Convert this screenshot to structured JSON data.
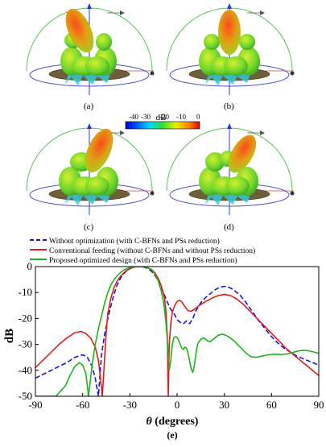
{
  "colorbar": {
    "unit": "dB",
    "tick_labels": [
      "-40",
      "-30",
      "-20",
      "-10",
      "0"
    ]
  },
  "panel_labels": [
    "(a)",
    "(b)",
    "(c)",
    "(d)",
    "(e)"
  ],
  "chart_data": {
    "type": "line",
    "xlabel_symbol": "θ",
    "xlabel_text": " (degrees)",
    "ylabel": "dB",
    "xlim": [
      -90,
      90
    ],
    "ylim": [
      -50,
      0
    ],
    "xticks": [
      -90,
      -60,
      -30,
      0,
      30,
      60,
      90
    ],
    "yticks": [
      0,
      -10,
      -20,
      -30,
      -40,
      -50
    ],
    "legend_placement": "top-left, above plot",
    "series": [
      {
        "name": "Without optimization (with C-BFNs and PSs reduction)",
        "color": "#1515d6",
        "style": "dashed",
        "points": [
          [
            -90,
            -43
          ],
          [
            -85,
            -41.5
          ],
          [
            -80,
            -40
          ],
          [
            -75,
            -38.5
          ],
          [
            -70,
            -37
          ],
          [
            -65,
            -35
          ],
          [
            -60,
            -34
          ],
          [
            -57,
            -35
          ],
          [
            -54,
            -38.5
          ],
          [
            -52,
            -43
          ],
          [
            -50,
            -50
          ],
          [
            -49,
            -42
          ],
          [
            -48,
            -34
          ],
          [
            -46,
            -26
          ],
          [
            -44,
            -20
          ],
          [
            -42,
            -15
          ],
          [
            -40,
            -10.5
          ],
          [
            -38,
            -7
          ],
          [
            -36,
            -4.5
          ],
          [
            -34,
            -2.8
          ],
          [
            -32,
            -1.6
          ],
          [
            -30,
            -0.8
          ],
          [
            -28,
            -0.3
          ],
          [
            -26,
            -0.05
          ],
          [
            -24,
            0
          ],
          [
            -22,
            -0.1
          ],
          [
            -20,
            -0.4
          ],
          [
            -18,
            -1
          ],
          [
            -16,
            -2
          ],
          [
            -14,
            -3.5
          ],
          [
            -12,
            -5.5
          ],
          [
            -10,
            -8
          ],
          [
            -8,
            -11
          ],
          [
            -6,
            -14
          ],
          [
            -4,
            -16.5
          ],
          [
            -2,
            -18
          ],
          [
            0,
            -20.5
          ],
          [
            2,
            -21.5
          ],
          [
            4,
            -22
          ],
          [
            6,
            -21
          ],
          [
            8,
            -22
          ],
          [
            10,
            -20
          ],
          [
            12,
            -17
          ],
          [
            15,
            -14
          ],
          [
            18,
            -12
          ],
          [
            21,
            -10.5
          ],
          [
            24,
            -9
          ],
          [
            27,
            -8
          ],
          [
            30,
            -7.6
          ],
          [
            33,
            -8
          ],
          [
            36,
            -9
          ],
          [
            40,
            -11
          ],
          [
            44,
            -14
          ],
          [
            48,
            -17.5
          ],
          [
            52,
            -21
          ],
          [
            56,
            -24
          ],
          [
            60,
            -27
          ],
          [
            64,
            -29.5
          ],
          [
            68,
            -31.5
          ],
          [
            72,
            -33
          ],
          [
            76,
            -34.5
          ],
          [
            80,
            -35.5
          ],
          [
            84,
            -36.5
          ],
          [
            88,
            -37.5
          ],
          [
            90,
            -38
          ]
        ]
      },
      {
        "name": "Conventional feeding (without C-BFNs and without PSs reduction)",
        "color": "#e01b1b",
        "style": "solid",
        "points": [
          [
            -90,
            -39
          ],
          [
            -85,
            -36
          ],
          [
            -80,
            -33
          ],
          [
            -75,
            -30
          ],
          [
            -70,
            -27.5
          ],
          [
            -65,
            -25.5
          ],
          [
            -61,
            -25
          ],
          [
            -58,
            -25.8
          ],
          [
            -55,
            -27.5
          ],
          [
            -52,
            -31
          ],
          [
            -50,
            -36
          ],
          [
            -48.5,
            -44
          ],
          [
            -47.5,
            -50
          ],
          [
            -46,
            -35
          ],
          [
            -45,
            -25
          ],
          [
            -44,
            -18
          ],
          [
            -42,
            -12
          ],
          [
            -40,
            -8
          ],
          [
            -38,
            -5.5
          ],
          [
            -36,
            -3.8
          ],
          [
            -34,
            -2.5
          ],
          [
            -32,
            -1.5
          ],
          [
            -30,
            -0.8
          ],
          [
            -28,
            -0.3
          ],
          [
            -26,
            -0.05
          ],
          [
            -24,
            0
          ],
          [
            -22,
            -0.05
          ],
          [
            -20,
            -0.2
          ],
          [
            -18,
            -0.6
          ],
          [
            -16,
            -1.2
          ],
          [
            -14,
            -2.5
          ],
          [
            -12,
            -4.5
          ],
          [
            -10,
            -7.5
          ],
          [
            -8,
            -12
          ],
          [
            -7,
            -18
          ],
          [
            -6.2,
            -27
          ],
          [
            -5.6,
            -50
          ],
          [
            -5,
            -30
          ],
          [
            -4,
            -22
          ],
          [
            -3,
            -17.5
          ],
          [
            -1.5,
            -15
          ],
          [
            0,
            -13.5
          ],
          [
            1.5,
            -13
          ],
          [
            3,
            -13.6
          ],
          [
            5,
            -15.5
          ],
          [
            7,
            -17
          ],
          [
            9,
            -17.2
          ],
          [
            11,
            -16.5
          ],
          [
            14,
            -15
          ],
          [
            18,
            -13.5
          ],
          [
            22,
            -12.2
          ],
          [
            26,
            -11.2
          ],
          [
            30,
            -10.7
          ],
          [
            34,
            -11.2
          ],
          [
            38,
            -12.5
          ],
          [
            42,
            -14.5
          ],
          [
            46,
            -17
          ],
          [
            50,
            -19.5
          ],
          [
            54,
            -22
          ],
          [
            58,
            -24.5
          ],
          [
            62,
            -27
          ],
          [
            66,
            -29.5
          ],
          [
            70,
            -32
          ],
          [
            74,
            -34
          ],
          [
            78,
            -36
          ],
          [
            82,
            -38
          ],
          [
            86,
            -40
          ],
          [
            90,
            -42
          ]
        ]
      },
      {
        "name": "Proposed optimized design (with C-BFNs and PSs reduction)",
        "color": "#1db41d",
        "style": "solid",
        "points": [
          [
            -90,
            -50
          ],
          [
            -85,
            -50
          ],
          [
            -80,
            -50
          ],
          [
            -77,
            -50
          ],
          [
            -74,
            -48
          ],
          [
            -71,
            -46
          ],
          [
            -68,
            -42
          ],
          [
            -65,
            -38.5
          ],
          [
            -62,
            -37
          ],
          [
            -60,
            -38
          ],
          [
            -58,
            -41
          ],
          [
            -57,
            -46
          ],
          [
            -56.3,
            -50
          ],
          [
            -55.5,
            -46
          ],
          [
            -54,
            -38
          ],
          [
            -52,
            -30
          ],
          [
            -50,
            -24
          ],
          [
            -48,
            -19
          ],
          [
            -46,
            -14
          ],
          [
            -44,
            -10
          ],
          [
            -42,
            -7
          ],
          [
            -40,
            -5
          ],
          [
            -38,
            -3.5
          ],
          [
            -36,
            -2.3
          ],
          [
            -34,
            -1.4
          ],
          [
            -32,
            -0.8
          ],
          [
            -30,
            -0.4
          ],
          [
            -28,
            -0.15
          ],
          [
            -26,
            -0.02
          ],
          [
            -24,
            0
          ],
          [
            -22,
            -0.05
          ],
          [
            -20,
            -0.2
          ],
          [
            -18,
            -0.6
          ],
          [
            -16,
            -1.4
          ],
          [
            -14,
            -3
          ],
          [
            -12,
            -5.5
          ],
          [
            -10,
            -9.5
          ],
          [
            -9,
            -12.5
          ],
          [
            -8,
            -16.5
          ],
          [
            -7,
            -22
          ],
          [
            -6,
            -30
          ],
          [
            -5,
            -40
          ],
          [
            -4,
            -36
          ],
          [
            -3,
            -30
          ],
          [
            -2,
            -27.3
          ],
          [
            -1,
            -27
          ],
          [
            0,
            -27.3
          ],
          [
            1,
            -28.5
          ],
          [
            2,
            -30
          ],
          [
            3,
            -31.5
          ],
          [
            4,
            -32
          ],
          [
            5,
            -31
          ],
          [
            6,
            -31.5
          ],
          [
            7,
            -33.5
          ],
          [
            8,
            -36.5
          ],
          [
            9,
            -39.5
          ],
          [
            10,
            -40.8
          ],
          [
            11,
            -38
          ],
          [
            12,
            -33.5
          ],
          [
            13,
            -30
          ],
          [
            15,
            -28
          ],
          [
            17,
            -27.5
          ],
          [
            19,
            -28.5
          ],
          [
            21,
            -29
          ],
          [
            23,
            -28
          ],
          [
            26,
            -26.5
          ],
          [
            29,
            -26
          ],
          [
            32,
            -26.8
          ],
          [
            36,
            -28.5
          ],
          [
            40,
            -31
          ],
          [
            44,
            -33.5
          ],
          [
            47,
            -34.8
          ],
          [
            50,
            -35
          ],
          [
            54,
            -34.5
          ],
          [
            58,
            -34
          ],
          [
            62,
            -33.8
          ],
          [
            66,
            -33.9
          ],
          [
            70,
            -33.7
          ],
          [
            74,
            -33
          ],
          [
            78,
            -32.4
          ],
          [
            82,
            -32.3
          ],
          [
            86,
            -32.8
          ],
          [
            90,
            -33.5
          ]
        ]
      }
    ]
  }
}
